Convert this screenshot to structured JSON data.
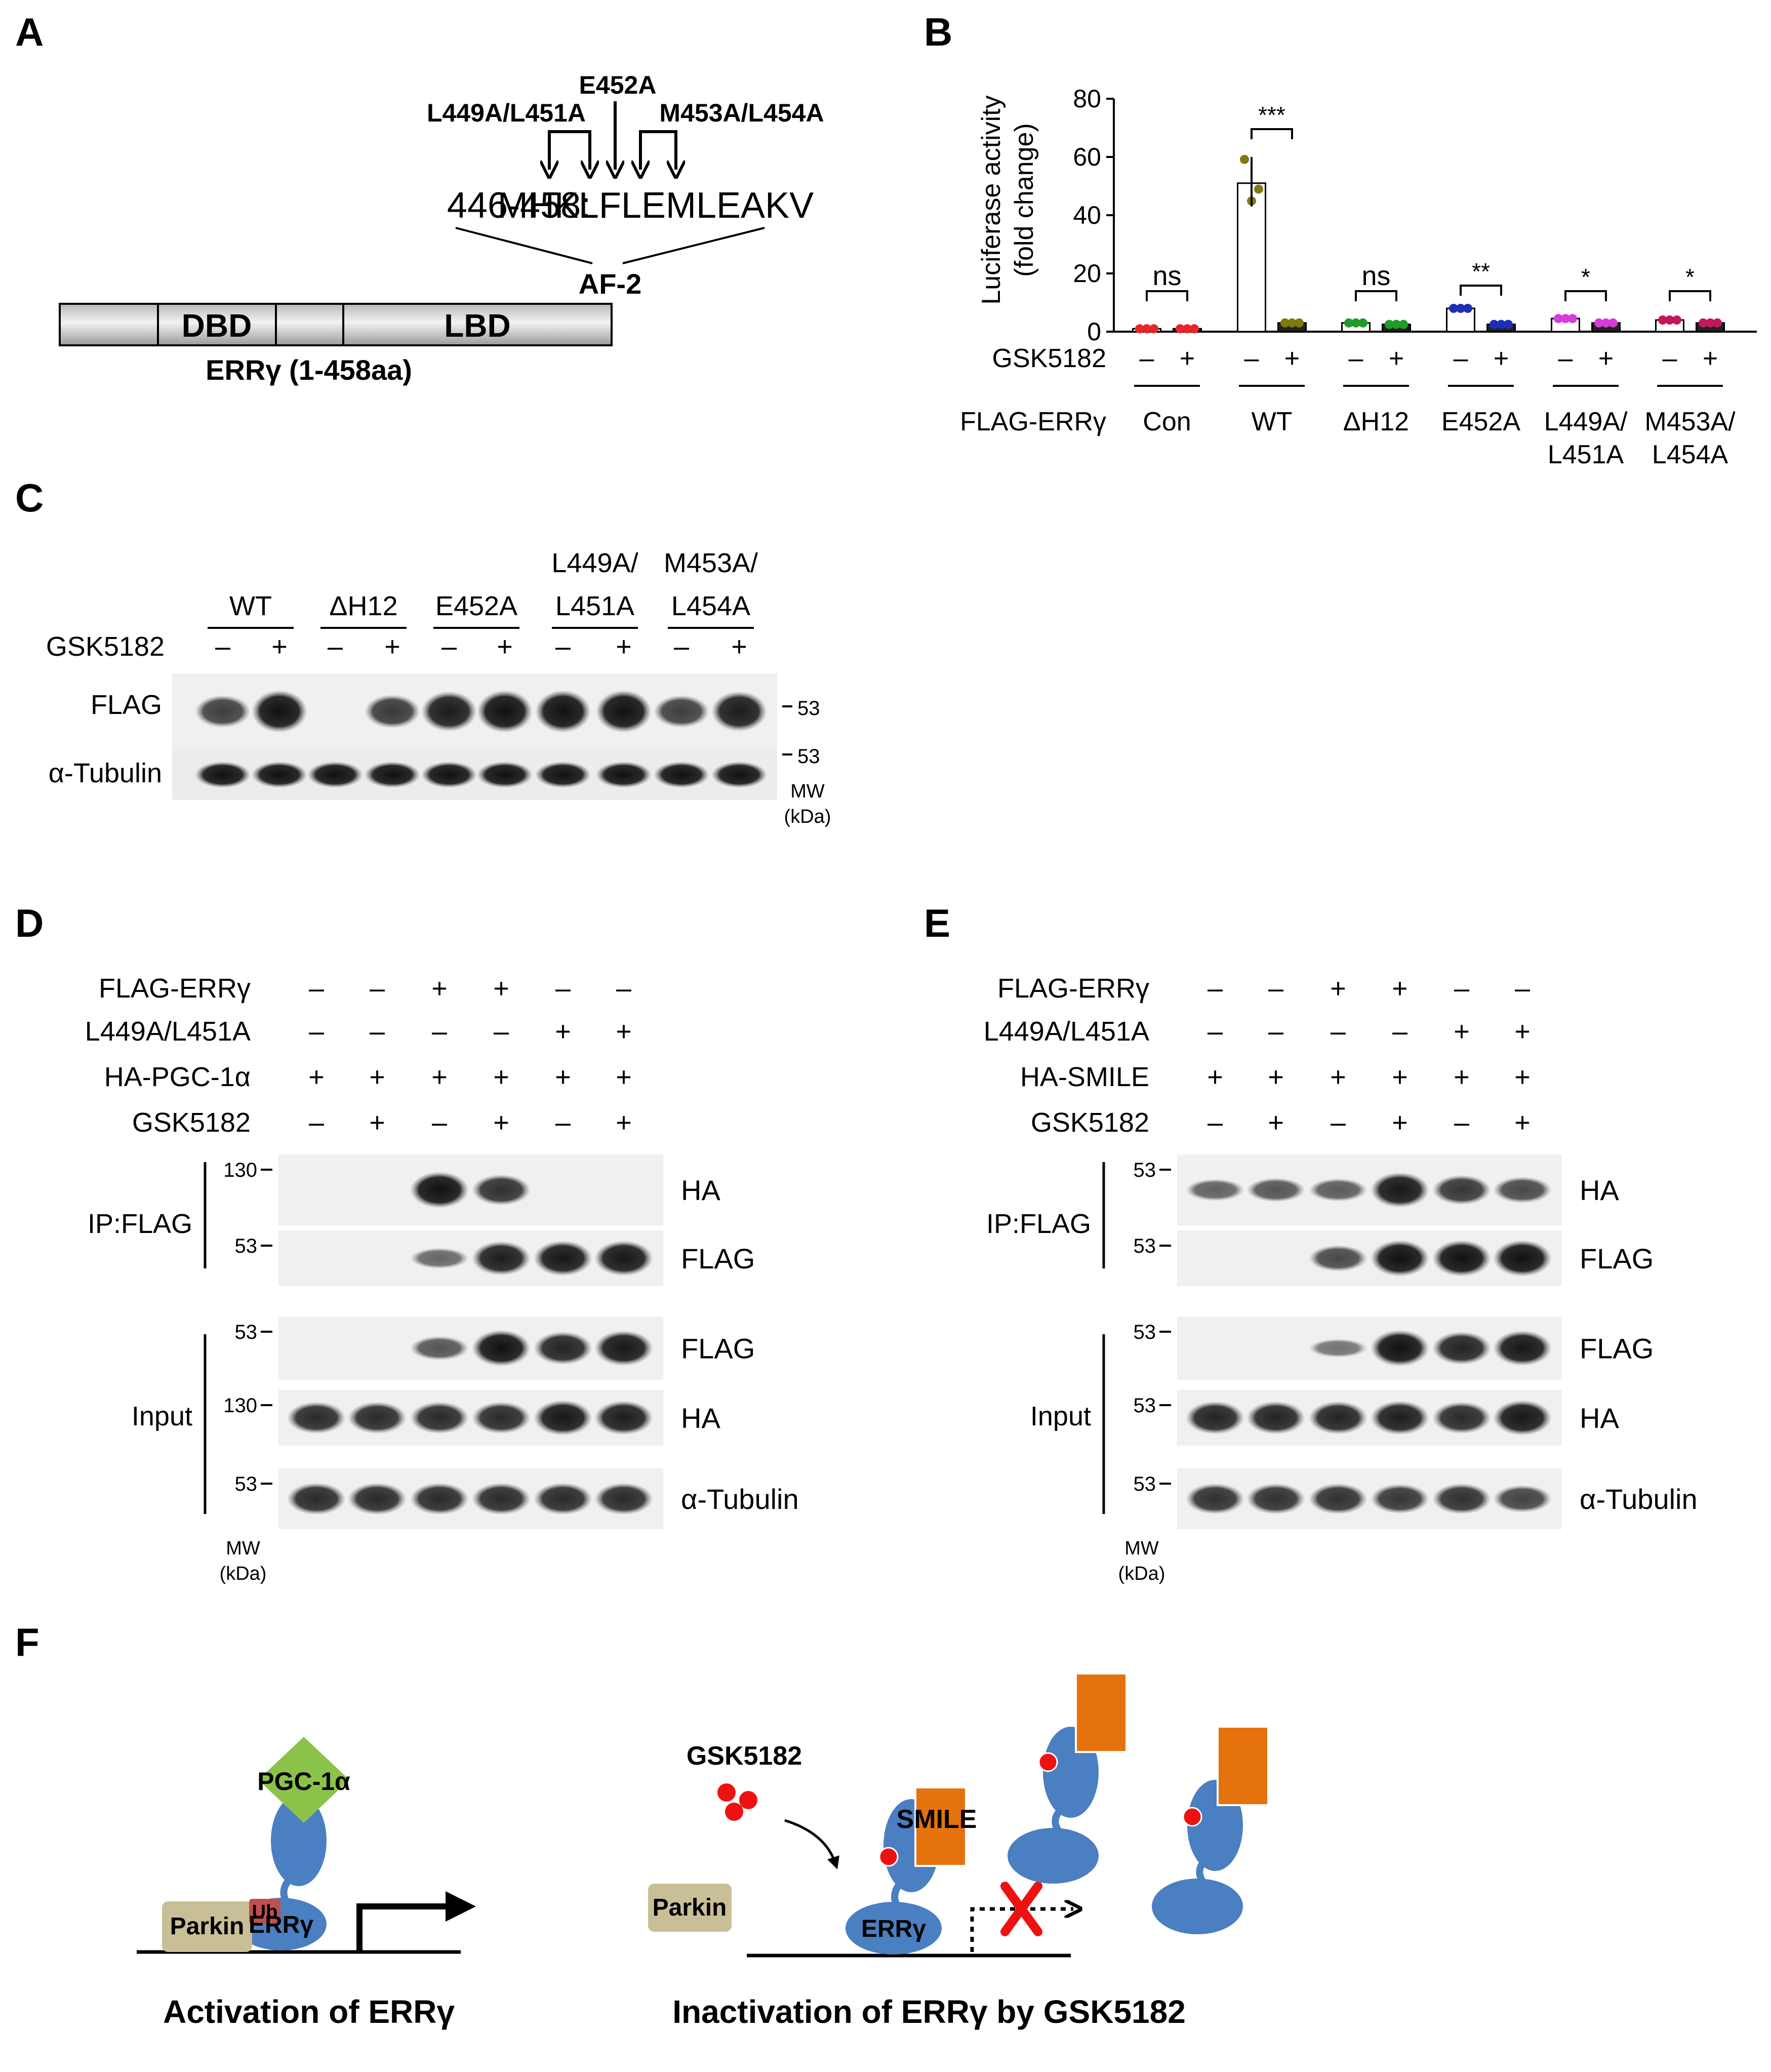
{
  "panel_labels": {
    "a": "A",
    "b": "B",
    "c": "C",
    "d": "D",
    "e": "E",
    "f": "F"
  },
  "panelA": {
    "mut1": "L449A/L451A",
    "mut2": "E452A",
    "mut3": "M453A/L454A",
    "seq_range": "446-458:",
    "seq": "MHKLFLEMLEAKV",
    "af2": "AF-2",
    "dbd": "DBD",
    "lbd": "LBD",
    "protein": "ERRγ (1-458aa)"
  },
  "chart_data": {
    "type": "bar",
    "categories": [
      "Con",
      "WT",
      "ΔH12",
      "E452A",
      "L449A/L451A",
      "M453A/L454A"
    ],
    "series": [
      {
        "values": [
          1,
          51,
          3,
          8,
          4.5,
          4
        ]
      },
      {
        "values": [
          1,
          3,
          2.5,
          2.5,
          3,
          3
        ]
      }
    ],
    "ylabel": "Luciferase activity (fold change)",
    "ylim": [
      0,
      80
    ],
    "yticks": [
      0,
      20,
      40,
      60,
      80
    ],
    "colors": [
      "#e8262a",
      "#7d7a0e",
      "#1f9b2a",
      "#1f2fb5",
      "#d63cd6",
      "#c2185b"
    ],
    "significance": [
      "ns",
      "***",
      "ns",
      "**",
      "*",
      "*"
    ],
    "row1_label": "GSK5182",
    "row2_label": "FLAG-ERRγ",
    "minus": "–",
    "plus": "+",
    "cat_lines": [
      [
        "Con"
      ],
      [
        "WT"
      ],
      [
        "ΔH12"
      ],
      [
        "E452A"
      ],
      [
        "L449A/",
        "L451A"
      ],
      [
        "M453A/",
        "L454A"
      ]
    ]
  },
  "panelC": {
    "groups": [
      [
        "WT"
      ],
      [
        "ΔH12"
      ],
      [
        "E452A"
      ],
      [
        "L449A/",
        "L451A"
      ],
      [
        "M453A/",
        "L454A"
      ]
    ],
    "gsk": "GSK5182",
    "flag": "FLAG",
    "tubulin": "α-Tubulin",
    "mw1": "53",
    "mw2": "53",
    "mw": "MW",
    "kda": "(kDa)"
  },
  "panelD": {
    "rows": [
      "FLAG-ERRγ",
      "L449A/L451A",
      "HA-PGC-1α",
      "GSK5182"
    ],
    "signs": [
      [
        "–",
        "–",
        "+",
        "+",
        "–",
        "–"
      ],
      [
        "–",
        "–",
        "–",
        "–",
        "+",
        "+"
      ],
      [
        "+",
        "+",
        "+",
        "+",
        "+",
        "+"
      ],
      [
        "–",
        "+",
        "–",
        "+",
        "–",
        "+"
      ]
    ],
    "ip": "IP:FLAG",
    "input": "Input",
    "blots": [
      "HA",
      "FLAG",
      "FLAG",
      "HA",
      "α-Tubulin"
    ],
    "mws": [
      "130",
      "53",
      "53",
      "130",
      "53"
    ],
    "mw": "MW",
    "kda": "(kDa)"
  },
  "panelE": {
    "rows": [
      "FLAG-ERRγ",
      "L449A/L451A",
      "HA-SMILE",
      "GSK5182"
    ],
    "signs": [
      [
        "–",
        "–",
        "+",
        "+",
        "–",
        "–"
      ],
      [
        "–",
        "–",
        "–",
        "–",
        "+",
        "+"
      ],
      [
        "+",
        "+",
        "+",
        "+",
        "+",
        "+"
      ],
      [
        "–",
        "+",
        "–",
        "+",
        "–",
        "+"
      ]
    ],
    "ip": "IP:FLAG",
    "input": "Input",
    "blots": [
      "HA",
      "FLAG",
      "FLAG",
      "HA",
      "α-Tubulin"
    ],
    "mws": [
      "53",
      "53",
      "53",
      "53",
      "53"
    ],
    "mw": "MW",
    "kda": "(kDa)"
  },
  "panelF": {
    "pgc": "PGC-1α",
    "parkin": "Parkin",
    "ub": "Ub",
    "err": "ERRγ",
    "gsk": "GSK5182",
    "smile": "SMILE",
    "parkin2": "Parkin",
    "err2": "ERRγ",
    "cap1": "Activation of ERRγ",
    "cap2": "Inactivation of ERRγ by GSK5182"
  },
  "colors": {
    "ball": "#4a7fc1",
    "green": "#8bc34a",
    "orange": "#e6720e",
    "parkin": "#c9bf96",
    "ub": "#c0504d",
    "dot": "#ee1111",
    "cross": "#ee1111"
  }
}
